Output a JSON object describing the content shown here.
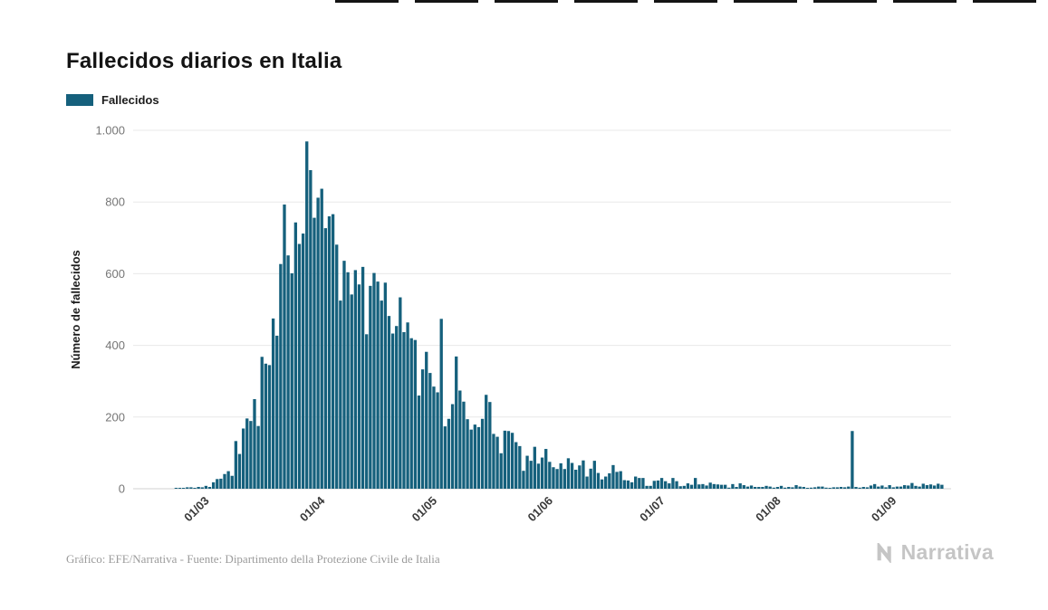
{
  "page": {
    "title": "Fallecidos diarios en Italia",
    "footer": "Gráfico: EFE/Narrativa - Fuente: Dipartimento della Protezione Civile de Italia",
    "brand": "Narrativa"
  },
  "legend": {
    "label": "Fallecidos"
  },
  "colors": {
    "bar": "#15607c",
    "grid": "#e8e8e8",
    "axis": "#d2d2d2",
    "title": "#141414",
    "ytick": "#767676",
    "xtick": "#3a3a3a",
    "ylabel": "#1c1c1c",
    "footer": "#9b9b9b",
    "brand": "#c5c5c5"
  },
  "chart_data": {
    "type": "bar",
    "title": "Fallecidos diarios en Italia",
    "series_name": "Fallecidos",
    "xlabel": "",
    "ylabel": "Número de fallecidos",
    "ylim": [
      0,
      1000
    ],
    "yticks": [
      0,
      200,
      400,
      600,
      800,
      1000
    ],
    "ytick_labels": [
      "0",
      "200",
      "400",
      "600",
      "800",
      "1.000"
    ],
    "xtick_labels": [
      "01/03",
      "01/04",
      "01/05",
      "01/06",
      "01/07",
      "01/08",
      "01/09"
    ],
    "xtick_indices": [
      20,
      51,
      81,
      112,
      142,
      173,
      204
    ],
    "grid": true,
    "legend_position": "top-left",
    "values": [
      0,
      0,
      0,
      0,
      0,
      0,
      0,
      0,
      0,
      0,
      0,
      1,
      1,
      1,
      4,
      4,
      2,
      5,
      4,
      8,
      5,
      18,
      27,
      28,
      41,
      49,
      36,
      133,
      97,
      168,
      196,
      189,
      250,
      175,
      368,
      349,
      345,
      475,
      427,
      627,
      793,
      651,
      601,
      743,
      683,
      712,
      969,
      889,
      756,
      812,
      837,
      727,
      760,
      766,
      681,
      525,
      636,
      604,
      542,
      610,
      570,
      619,
      431,
      566,
      602,
      578,
      525,
      575,
      482,
      433,
      454,
      534,
      437,
      464,
      420,
      415,
      260,
      333,
      382,
      323,
      285,
      269,
      474,
      174,
      195,
      236,
      369,
      274,
      243,
      194,
      165,
      179,
      172,
      195,
      262,
      242,
      153,
      145,
      99,
      162,
      161,
      156,
      130,
      119,
      50,
      92,
      78,
      117,
      70,
      87,
      111,
      75,
      60,
      55,
      71,
      55,
      85,
      72,
      53,
      65,
      79,
      34,
      56,
      78,
      44,
      26,
      34,
      43,
      66,
      47,
      49,
      24,
      23,
      18,
      34,
      30,
      30,
      8,
      8,
      22,
      23,
      30,
      21,
      15,
      30,
      21,
      7,
      8,
      15,
      11,
      30,
      12,
      13,
      9,
      17,
      13,
      12,
      11,
      11,
      3,
      13,
      5,
      15,
      10,
      6,
      9,
      5,
      5,
      5,
      8,
      6,
      3,
      5,
      8,
      3,
      5,
      4,
      10,
      6,
      5,
      2,
      3,
      4,
      6,
      6,
      3,
      2,
      4,
      4,
      5,
      4,
      6,
      161,
      5,
      3,
      5,
      4,
      9,
      13,
      6,
      9,
      4,
      10,
      4,
      6,
      6,
      10,
      9,
      16,
      8,
      6,
      14,
      10,
      12,
      9,
      14,
      11
    ]
  }
}
